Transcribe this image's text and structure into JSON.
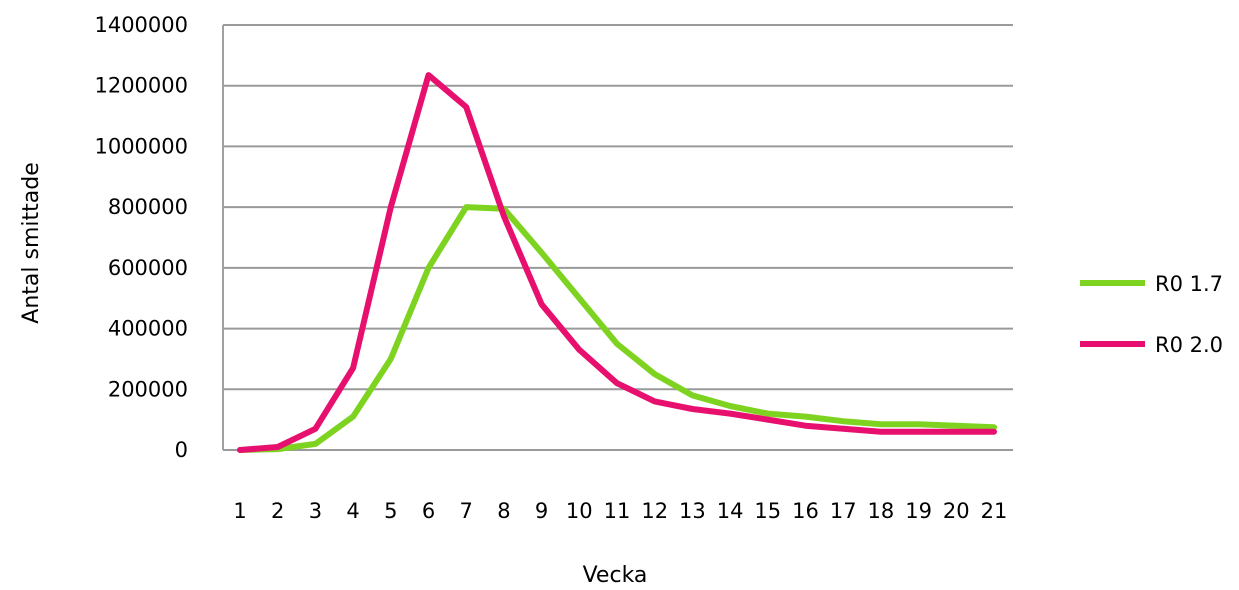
{
  "chart_data": {
    "type": "line",
    "title": "",
    "xlabel": "Vecka",
    "ylabel": "Antal smittade",
    "ylim": [
      0,
      1400000
    ],
    "yticks": [
      0,
      200000,
      400000,
      600000,
      800000,
      1000000,
      1200000,
      1400000
    ],
    "ytick_labels": [
      "0",
      "200000",
      "400000",
      "600000",
      "800000",
      "1000000",
      "1200000",
      "1400000"
    ],
    "categories": [
      "1",
      "2",
      "3",
      "4",
      "5",
      "6",
      "7",
      "8",
      "9",
      "10",
      "11",
      "12",
      "13",
      "14",
      "15",
      "16",
      "17",
      "18",
      "19",
      "20",
      "21"
    ],
    "grid": true,
    "legend_position": "right",
    "series": [
      {
        "name": "R0 1.7",
        "color": "#7ed321",
        "values": [
          0,
          3000,
          20000,
          110000,
          300000,
          600000,
          800000,
          795000,
          650000,
          500000,
          350000,
          250000,
          180000,
          145000,
          120000,
          110000,
          95000,
          85000,
          85000,
          80000,
          75000
        ]
      },
      {
        "name": "R0 2.0",
        "color": "#e8106f",
        "values": [
          0,
          10000,
          70000,
          270000,
          800000,
          1235000,
          1130000,
          770000,
          480000,
          330000,
          220000,
          160000,
          135000,
          120000,
          100000,
          80000,
          70000,
          60000,
          60000,
          60000,
          60000
        ]
      }
    ]
  }
}
